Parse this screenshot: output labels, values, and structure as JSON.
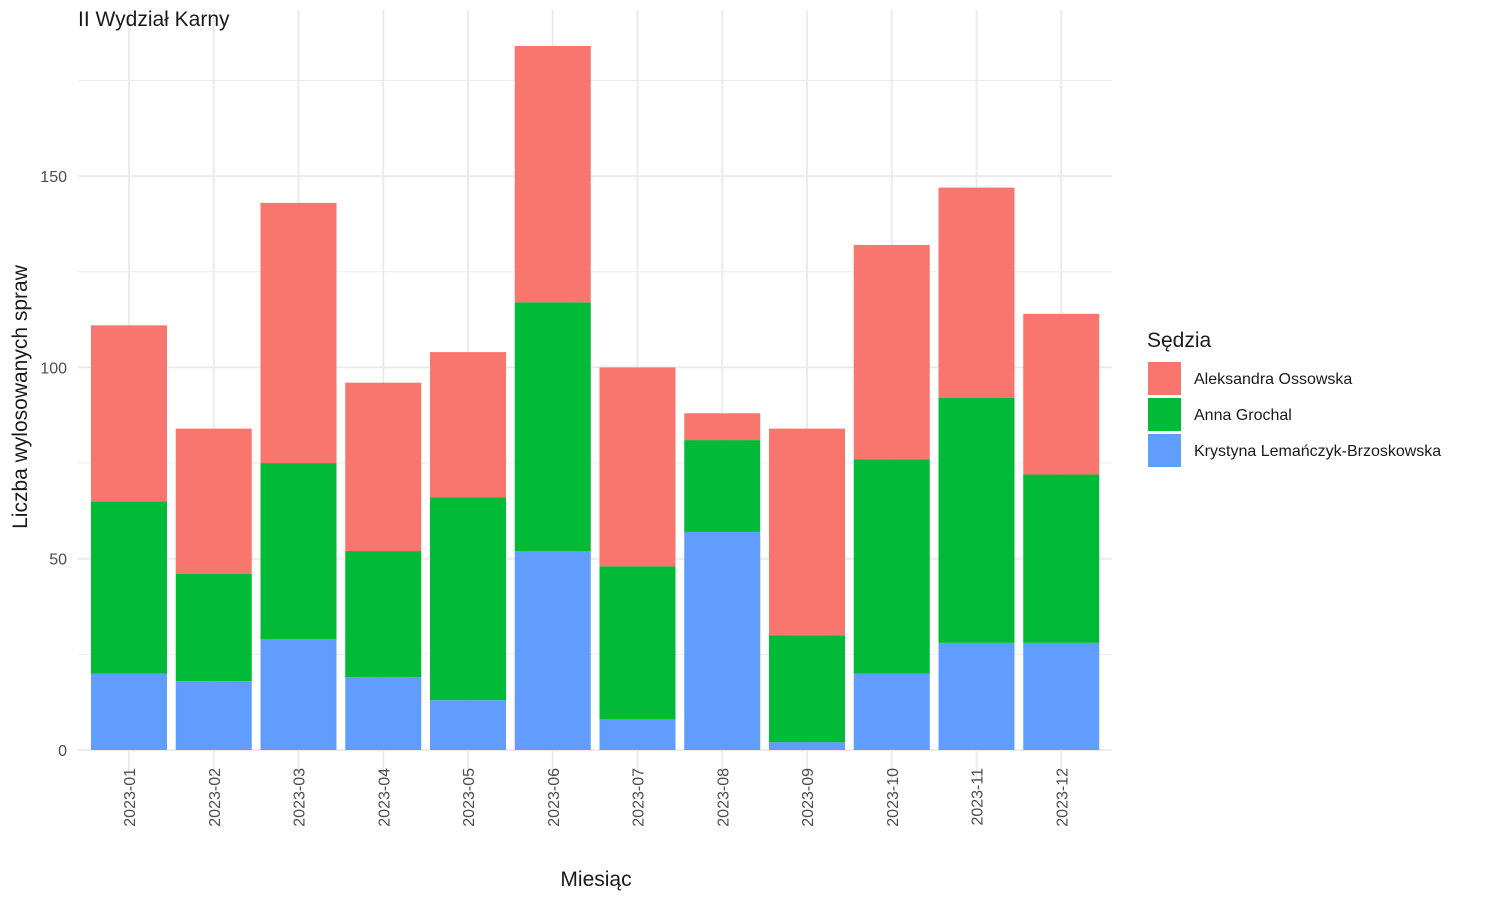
{
  "chart_data": {
    "type": "bar",
    "stacked": true,
    "title": "II Wydział Karny",
    "xlabel": "Miesiąc",
    "ylabel": "Liczba wylosowanych spraw",
    "ylim": [
      0,
      190
    ],
    "yticks": [
      0,
      50,
      100,
      150
    ],
    "categories": [
      "2023-01",
      "2023-02",
      "2023-03",
      "2023-04",
      "2023-05",
      "2023-06",
      "2023-07",
      "2023-08",
      "2023-09",
      "2023-10",
      "2023-11",
      "2023-12"
    ],
    "series": [
      {
        "name": "Krystyna Lemańczyk-Brzoskowska",
        "color": "#619cff",
        "values": [
          20,
          18,
          29,
          19,
          13,
          52,
          8,
          57,
          2,
          20,
          28,
          28
        ]
      },
      {
        "name": "Anna Grochal",
        "color": "#00ba38",
        "values": [
          45,
          28,
          46,
          33,
          53,
          65,
          40,
          24,
          28,
          56,
          64,
          44
        ]
      },
      {
        "name": "Aleksandra Ossowska",
        "color": "#f8766d",
        "values": [
          46,
          38,
          68,
          44,
          38,
          67,
          52,
          7,
          54,
          56,
          55,
          42
        ]
      }
    ],
    "legend": {
      "title": "Sędzia",
      "position": "right",
      "order": [
        "Aleksandra Ossowska",
        "Anna Grochal",
        "Krystyna Lemańczyk-Brzoskowska"
      ]
    },
    "grid": true,
    "theme": "minimal"
  }
}
